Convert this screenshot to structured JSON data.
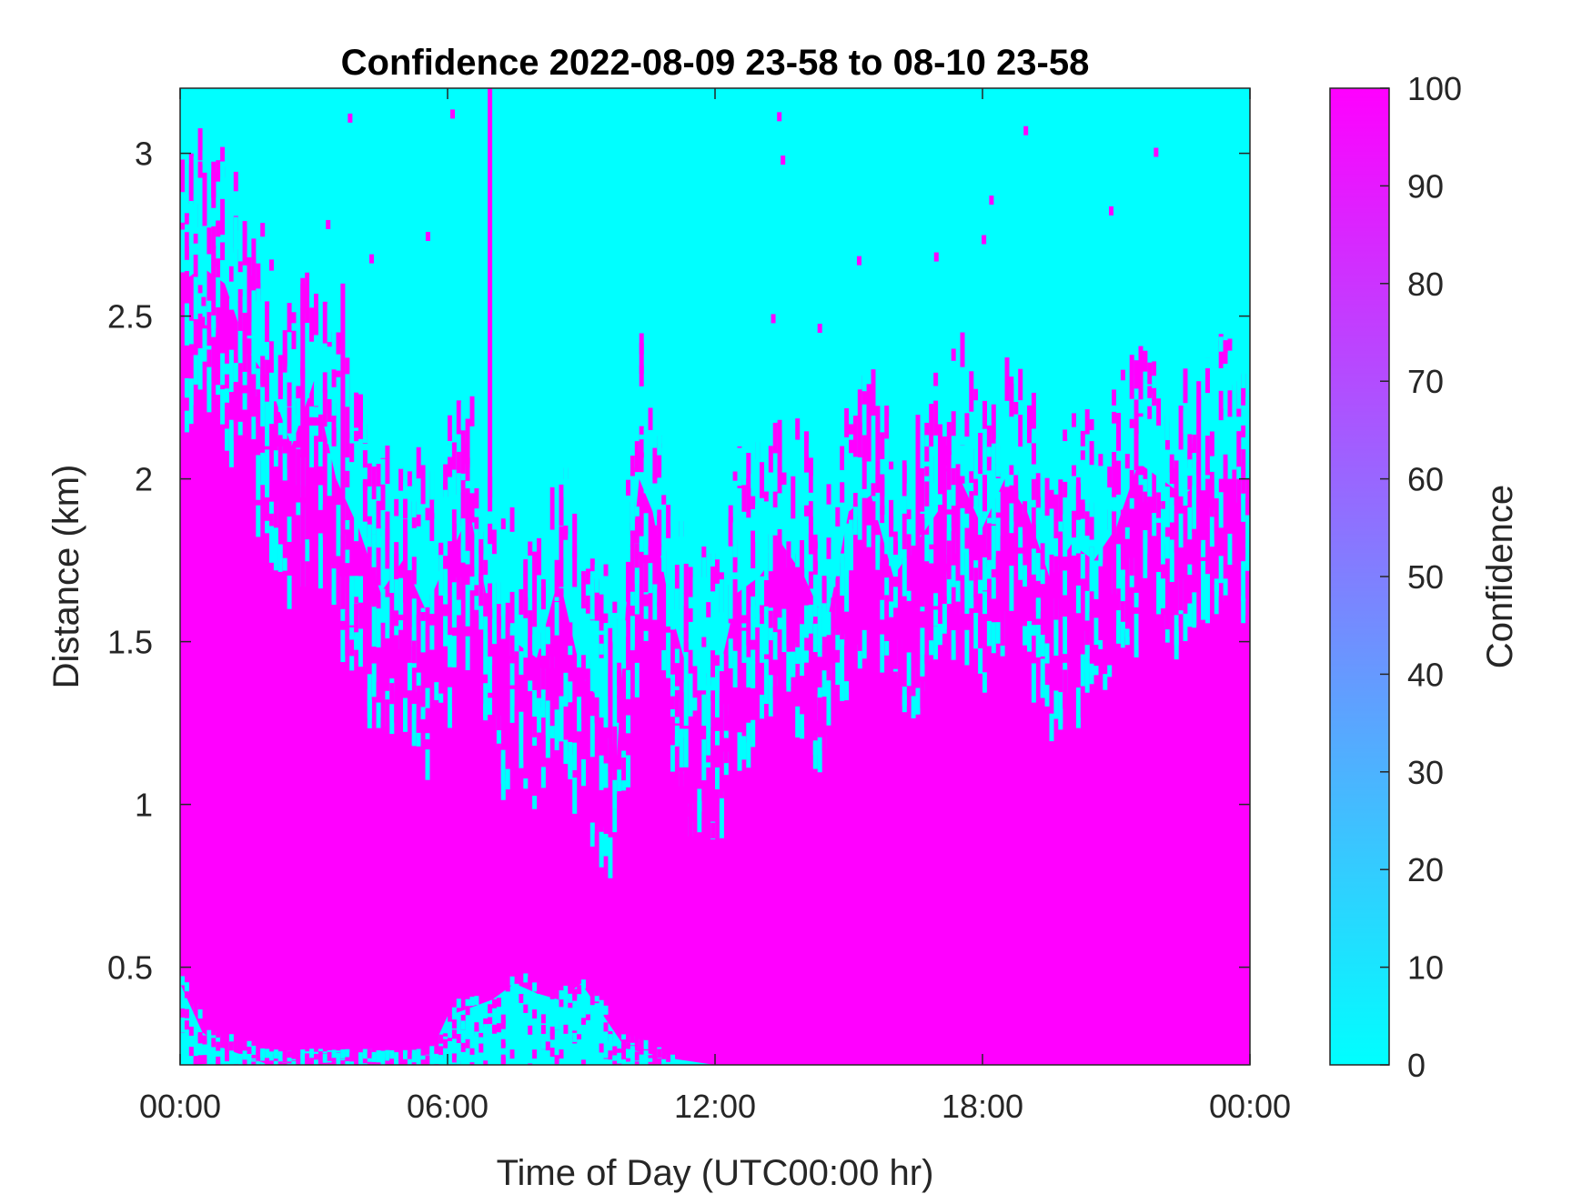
{
  "chart_data": {
    "type": "heatmap",
    "title": "Confidence 2022-08-09 23-58 to 08-10 23-58",
    "xlabel": "Time of Day (UTC00:00 hr)",
    "ylabel": "Distance (km)",
    "xlim": [
      0,
      24
    ],
    "ylim": [
      0.2,
      3.2
    ],
    "xticks": [
      {
        "value": 0,
        "label": "00:00"
      },
      {
        "value": 6,
        "label": "06:00"
      },
      {
        "value": 12,
        "label": "12:00"
      },
      {
        "value": 18,
        "label": "18:00"
      },
      {
        "value": 24,
        "label": "00:00"
      }
    ],
    "yticks": [
      {
        "value": 0.5,
        "label": "0.5"
      },
      {
        "value": 1,
        "label": "1"
      },
      {
        "value": 1.5,
        "label": "1.5"
      },
      {
        "value": 2,
        "label": "2"
      },
      {
        "value": 2.5,
        "label": "2.5"
      },
      {
        "value": 3,
        "label": "3"
      }
    ],
    "colorbar": {
      "label": "Confidence",
      "range": [
        0,
        100
      ],
      "ticks": [
        "0",
        "10",
        "20",
        "30",
        "40",
        "50",
        "60",
        "70",
        "80",
        "90",
        "100"
      ],
      "color_low": "#00ffff",
      "color_high": "#ff00ff"
    },
    "high_confidence_top_km": [
      {
        "t": 0.0,
        "km": 2.6
      },
      {
        "t": 0.5,
        "km": 2.65
      },
      {
        "t": 1.0,
        "km": 2.6
      },
      {
        "t": 1.5,
        "km": 2.4
      },
      {
        "t": 2.0,
        "km": 2.3
      },
      {
        "t": 2.5,
        "km": 2.1
      },
      {
        "t": 3.0,
        "km": 2.3
      },
      {
        "t": 3.5,
        "km": 2.0
      },
      {
        "t": 4.0,
        "km": 1.85
      },
      {
        "t": 4.5,
        "km": 1.65
      },
      {
        "t": 5.0,
        "km": 1.75
      },
      {
        "t": 5.5,
        "km": 1.6
      },
      {
        "t": 6.0,
        "km": 1.75
      },
      {
        "t": 6.5,
        "km": 1.9
      },
      {
        "t": 7.0,
        "km": 1.55
      },
      {
        "t": 7.5,
        "km": 1.5
      },
      {
        "t": 8.0,
        "km": 1.45
      },
      {
        "t": 8.5,
        "km": 1.7
      },
      {
        "t": 9.0,
        "km": 1.4
      },
      {
        "t": 9.5,
        "km": 1.3
      },
      {
        "t": 9.8,
        "km": 1.15
      },
      {
        "t": 10.0,
        "km": 1.6
      },
      {
        "t": 10.3,
        "km": 2.0
      },
      {
        "t": 10.6,
        "km": 1.9
      },
      {
        "t": 11.0,
        "km": 1.6
      },
      {
        "t": 11.5,
        "km": 1.35
      },
      {
        "t": 12.0,
        "km": 1.35
      },
      {
        "t": 12.5,
        "km": 1.65
      },
      {
        "t": 13.0,
        "km": 1.7
      },
      {
        "t": 13.5,
        "km": 1.8
      },
      {
        "t": 14.0,
        "km": 1.7
      },
      {
        "t": 14.5,
        "km": 1.55
      },
      {
        "t": 15.0,
        "km": 1.9
      },
      {
        "t": 15.5,
        "km": 1.95
      },
      {
        "t": 16.0,
        "km": 1.7
      },
      {
        "t": 16.5,
        "km": 1.8
      },
      {
        "t": 17.0,
        "km": 1.9
      },
      {
        "t": 17.5,
        "km": 2.0
      },
      {
        "t": 18.0,
        "km": 1.85
      },
      {
        "t": 18.5,
        "km": 2.0
      },
      {
        "t": 19.0,
        "km": 1.9
      },
      {
        "t": 19.5,
        "km": 1.7
      },
      {
        "t": 20.0,
        "km": 1.8
      },
      {
        "t": 20.5,
        "km": 1.75
      },
      {
        "t": 21.0,
        "km": 1.85
      },
      {
        "t": 21.5,
        "km": 2.05
      },
      {
        "t": 22.0,
        "km": 2.0
      },
      {
        "t": 22.5,
        "km": 1.95
      },
      {
        "t": 23.0,
        "km": 2.0
      },
      {
        "t": 23.5,
        "km": 2.0
      },
      {
        "t": 24.0,
        "km": 2.0
      }
    ],
    "low_confidence_bottom_km": [
      {
        "t": 0.0,
        "km": 0.45
      },
      {
        "t": 0.5,
        "km": 0.3
      },
      {
        "t": 1.0,
        "km": 0.25
      },
      {
        "t": 2.0,
        "km": 0.2
      },
      {
        "t": 5.5,
        "km": 0.2
      },
      {
        "t": 6.0,
        "km": 0.35
      },
      {
        "t": 7.0,
        "km": 0.4
      },
      {
        "t": 7.5,
        "km": 0.45
      },
      {
        "t": 8.0,
        "km": 0.42
      },
      {
        "t": 8.5,
        "km": 0.4
      },
      {
        "t": 9.0,
        "km": 0.45
      },
      {
        "t": 9.5,
        "km": 0.35
      },
      {
        "t": 10.0,
        "km": 0.25
      },
      {
        "t": 11.0,
        "km": 0.22
      },
      {
        "t": 12.0,
        "km": 0.2
      },
      {
        "t": 24.0,
        "km": 0.2
      }
    ],
    "spikes": [
      {
        "t": 2.7,
        "bottom_km": 1.35,
        "top_km": 2.6
      },
      {
        "t": 3.6,
        "bottom_km": 1.6,
        "top_km": 2.6
      },
      {
        "t": 6.9,
        "bottom_km": 1.9,
        "top_km": 3.2
      },
      {
        "t": 9.6,
        "bottom_km": 1.1,
        "top_km": 1.5
      },
      {
        "t": 16.5,
        "bottom_km": 1.6,
        "top_km": 2.1
      },
      {
        "t": 20.9,
        "bottom_km": 1.55,
        "top_km": 1.9
      },
      {
        "t": 22.8,
        "bottom_km": 1.8,
        "top_km": 2.3
      }
    ]
  }
}
